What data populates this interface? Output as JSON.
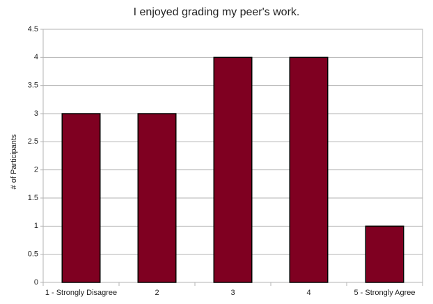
{
  "chart_data": {
    "type": "bar",
    "title": "I enjoyed grading my peer's work.",
    "y_label": "# of Participants",
    "categories": [
      "1 - Strongly Disagree",
      "2",
      "3",
      "4",
      "5 - Strongly Agree"
    ],
    "values": [
      3,
      3,
      4,
      4,
      1
    ],
    "color": "#7f0021",
    "ylim": [
      0,
      4.5
    ],
    "yticks": [
      0,
      0.5,
      1,
      1.5,
      2,
      2.5,
      3,
      3.5,
      4,
      4.5
    ],
    "grid": true
  }
}
